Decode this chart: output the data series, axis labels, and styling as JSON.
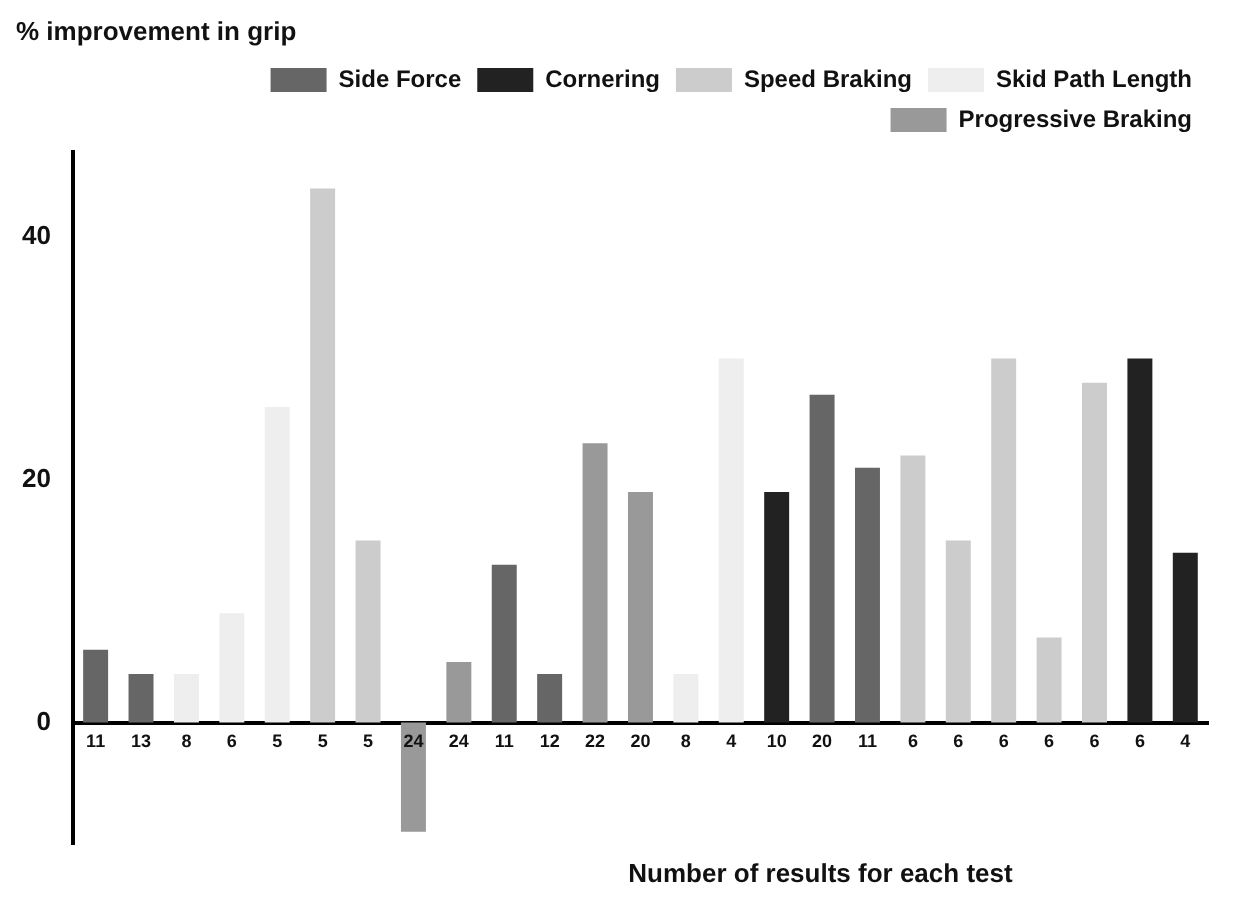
{
  "chart_data": {
    "type": "bar",
    "ylabel": "% improvement in grip",
    "xlabel": "Number of results for each test",
    "categories": [
      "11",
      "13",
      "8",
      "6",
      "5",
      "5",
      "5",
      "24",
      "24",
      "11",
      "12",
      "22",
      "20",
      "8",
      "4",
      "10",
      "20",
      "11",
      "6",
      "6",
      "6",
      "6",
      "6",
      "6",
      "4"
    ],
    "series": [
      {
        "name": "Side Force",
        "color": "#666666",
        "values": [
          6,
          4,
          null,
          null,
          null,
          null,
          null,
          null,
          null,
          13,
          4,
          null,
          null,
          null,
          null,
          null,
          27,
          21,
          null,
          null,
          null,
          null,
          null,
          null,
          null
        ]
      },
      {
        "name": "Cornering",
        "color": "#222222",
        "values": [
          null,
          null,
          null,
          null,
          null,
          null,
          null,
          null,
          null,
          null,
          null,
          null,
          null,
          null,
          null,
          19,
          null,
          null,
          null,
          null,
          null,
          null,
          null,
          30,
          14
        ]
      },
      {
        "name": "Speed Braking",
        "color": "#cccccc",
        "values": [
          null,
          null,
          null,
          null,
          null,
          44,
          15,
          null,
          null,
          null,
          null,
          null,
          null,
          null,
          null,
          null,
          null,
          null,
          22,
          15,
          30,
          7,
          28,
          null,
          null
        ]
      },
      {
        "name": "Skid Path Length",
        "color": "#eeeeee",
        "values": [
          null,
          null,
          4,
          9,
          26,
          null,
          null,
          null,
          null,
          null,
          null,
          null,
          null,
          4,
          30,
          null,
          null,
          null,
          null,
          null,
          null,
          null,
          null,
          null,
          null
        ]
      },
      {
        "name": "Progressive Braking",
        "color": "#999999",
        "values": [
          null,
          null,
          null,
          null,
          null,
          null,
          null,
          -9,
          5,
          null,
          null,
          23,
          19,
          null,
          null,
          null,
          null,
          null,
          null,
          null,
          null,
          null,
          null,
          null,
          null
        ]
      }
    ],
    "ylim": [
      -10,
      47
    ],
    "yticks": [
      0,
      20,
      40
    ],
    "grid": false,
    "legend": "top right"
  }
}
